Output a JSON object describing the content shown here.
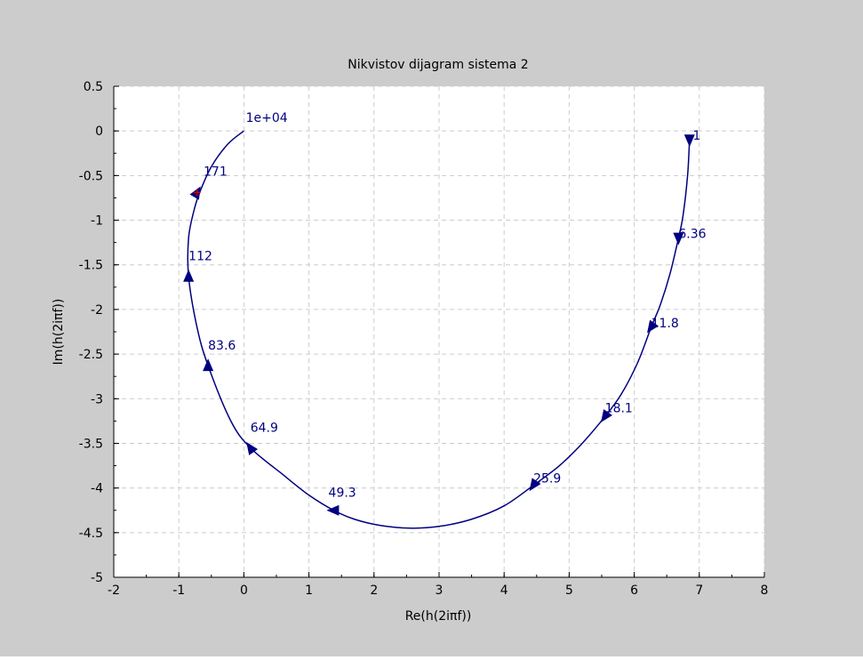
{
  "colors": {
    "frame_background": "#cccccc",
    "plot_background": "#ffffff",
    "curve": "#000080",
    "grid": "#cccccc",
    "marker": "#cc0000",
    "text": "#000000"
  },
  "chart_data": {
    "type": "line",
    "title": "Nikvistov dijagram sistema 2",
    "xlabel": "Re(h(2iπf))",
    "ylabel": "Im(h(2iπf))",
    "xlim": [
      -2,
      8
    ],
    "ylim": [
      -5,
      0.5
    ],
    "grid": true,
    "x_ticks": [
      "-2",
      "-1",
      "0",
      "1",
      "2",
      "3",
      "4",
      "5",
      "6",
      "7",
      "8"
    ],
    "y_ticks": [
      "0.5",
      "0",
      "-0.5",
      "-1",
      "-1.5",
      "-2",
      "-2.5",
      "-3",
      "-3.5",
      "-4",
      "-4.5",
      "-5"
    ],
    "series": [
      {
        "x": [
          6.85,
          6.82,
          6.75,
          6.68,
          6.55,
          6.4,
          6.26,
          6.05,
          5.8,
          5.55,
          5.2,
          4.85,
          4.45,
          4.0,
          3.5,
          3.0,
          2.55,
          2.1,
          1.7,
          1.38,
          1.0,
          0.6,
          0.1,
          -0.2,
          -0.55,
          -0.72,
          -0.85,
          -0.85,
          -0.77,
          -0.68,
          -0.5,
          -0.25,
          0.0
        ],
        "y": [
          -0.1,
          -0.5,
          -0.95,
          -1.2,
          -1.6,
          -1.95,
          -2.2,
          -2.6,
          -2.95,
          -3.2,
          -3.5,
          -3.75,
          -3.97,
          -4.2,
          -4.35,
          -4.43,
          -4.45,
          -4.42,
          -4.35,
          -4.25,
          -4.08,
          -3.85,
          -3.55,
          -3.25,
          -2.63,
          -2.2,
          -1.63,
          -1.2,
          -0.9,
          -0.69,
          -0.4,
          -0.15,
          0.0
        ]
      }
    ],
    "arrows": [
      {
        "x": 6.85,
        "y": -0.1,
        "dir": "down"
      },
      {
        "x": 6.68,
        "y": -1.2,
        "dir": "down"
      },
      {
        "x": 6.26,
        "y": -2.2,
        "dir": "down-left"
      },
      {
        "x": 5.55,
        "y": -3.2,
        "dir": "down-left"
      },
      {
        "x": 4.45,
        "y": -3.97,
        "dir": "down-left"
      },
      {
        "x": 1.38,
        "y": -4.25,
        "dir": "left"
      },
      {
        "x": 0.1,
        "y": -3.55,
        "dir": "up-left"
      },
      {
        "x": -0.55,
        "y": -2.63,
        "dir": "up"
      },
      {
        "x": -0.85,
        "y": -1.63,
        "dir": "up"
      },
      {
        "x": -0.72,
        "y": -0.69,
        "dir": "up-right"
      }
    ],
    "annotations": [
      {
        "text": "1",
        "x": 6.9,
        "y": -0.1
      },
      {
        "text": "6.36",
        "x": 6.68,
        "y": -1.2
      },
      {
        "text": "11.8",
        "x": 6.26,
        "y": -2.2
      },
      {
        "text": "18.1",
        "x": 5.55,
        "y": -3.15
      },
      {
        "text": "25.9",
        "x": 4.45,
        "y": -3.94
      },
      {
        "text": "49.3",
        "x": 1.3,
        "y": -4.1
      },
      {
        "text": "64.9",
        "x": 0.1,
        "y": -3.37
      },
      {
        "text": "83.6",
        "x": -0.55,
        "y": -2.45
      },
      {
        "text": "112",
        "x": -0.85,
        "y": -1.45
      },
      {
        "text": "171",
        "x": -0.62,
        "y": -0.5
      },
      {
        "text": "1e+04",
        "x": 0.03,
        "y": 0.1
      }
    ],
    "red_marker": {
      "x": -0.72,
      "y": -0.69
    }
  }
}
